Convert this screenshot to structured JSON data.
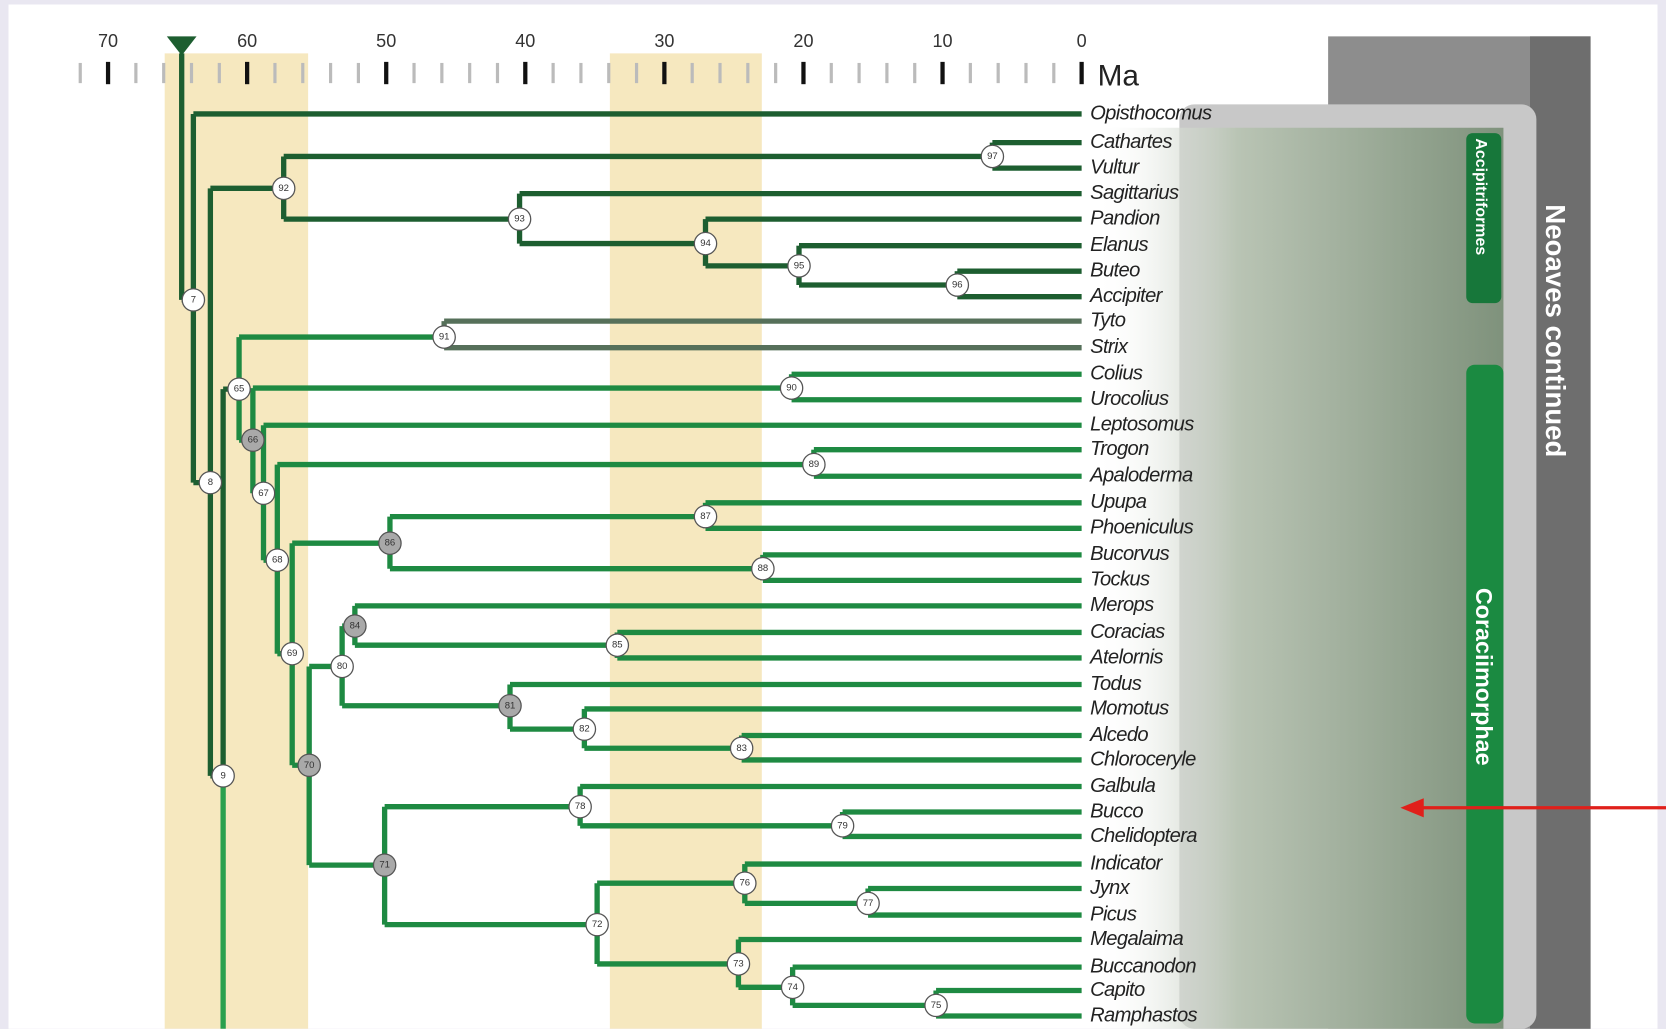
{
  "axis": {
    "ticks": [
      70,
      60,
      50,
      40,
      30,
      20,
      10,
      0
    ],
    "unit": "Ma"
  },
  "taxa": [
    "Opisthocomus",
    "Cathartes",
    "Vultur",
    "Sagittarius",
    "Pandion",
    "Elanus",
    "Buteo",
    "Accipiter",
    "Tyto",
    "Strix",
    "Colius",
    "Urocolius",
    "Leptosomus",
    "Trogon",
    "Apaloderma",
    "Upupa",
    "Phoeniculus",
    "Bucorvus",
    "Tockus",
    "Merops",
    "Coracias",
    "Atelornis",
    "Todus",
    "Momotus",
    "Alcedo",
    "Chloroceryle",
    "Galbula",
    "Bucco",
    "Chelidoptera",
    "Indicator",
    "Jynx",
    "Picus",
    "Megalaima",
    "Buccanodon",
    "Capito",
    "Ramphastos"
  ],
  "nodes": [
    {
      "label": "7"
    },
    {
      "label": "8"
    },
    {
      "label": "9"
    },
    {
      "label": "92"
    },
    {
      "label": "97"
    },
    {
      "label": "93"
    },
    {
      "label": "94"
    },
    {
      "label": "95"
    },
    {
      "label": "96"
    },
    {
      "label": "91"
    },
    {
      "label": "65"
    },
    {
      "label": "66",
      "shaded": true
    },
    {
      "label": "67"
    },
    {
      "label": "68"
    },
    {
      "label": "89"
    },
    {
      "label": "90"
    },
    {
      "label": "69"
    },
    {
      "label": "86",
      "shaded": true
    },
    {
      "label": "87"
    },
    {
      "label": "88"
    },
    {
      "label": "70",
      "shaded": true
    },
    {
      "label": "80"
    },
    {
      "label": "84",
      "shaded": true
    },
    {
      "label": "85"
    },
    {
      "label": "81",
      "shaded": true
    },
    {
      "label": "82"
    },
    {
      "label": "83"
    },
    {
      "label": "71",
      "shaded": true
    },
    {
      "label": "78"
    },
    {
      "label": "79"
    },
    {
      "label": "72"
    },
    {
      "label": "76"
    },
    {
      "label": "77"
    },
    {
      "label": "73"
    },
    {
      "label": "74"
    },
    {
      "label": "75"
    }
  ],
  "groups": {
    "outer": "Neoaves continued",
    "accipitriformes": "Accipitriformes",
    "coraciimorphae": "Coraciimorphae"
  }
}
